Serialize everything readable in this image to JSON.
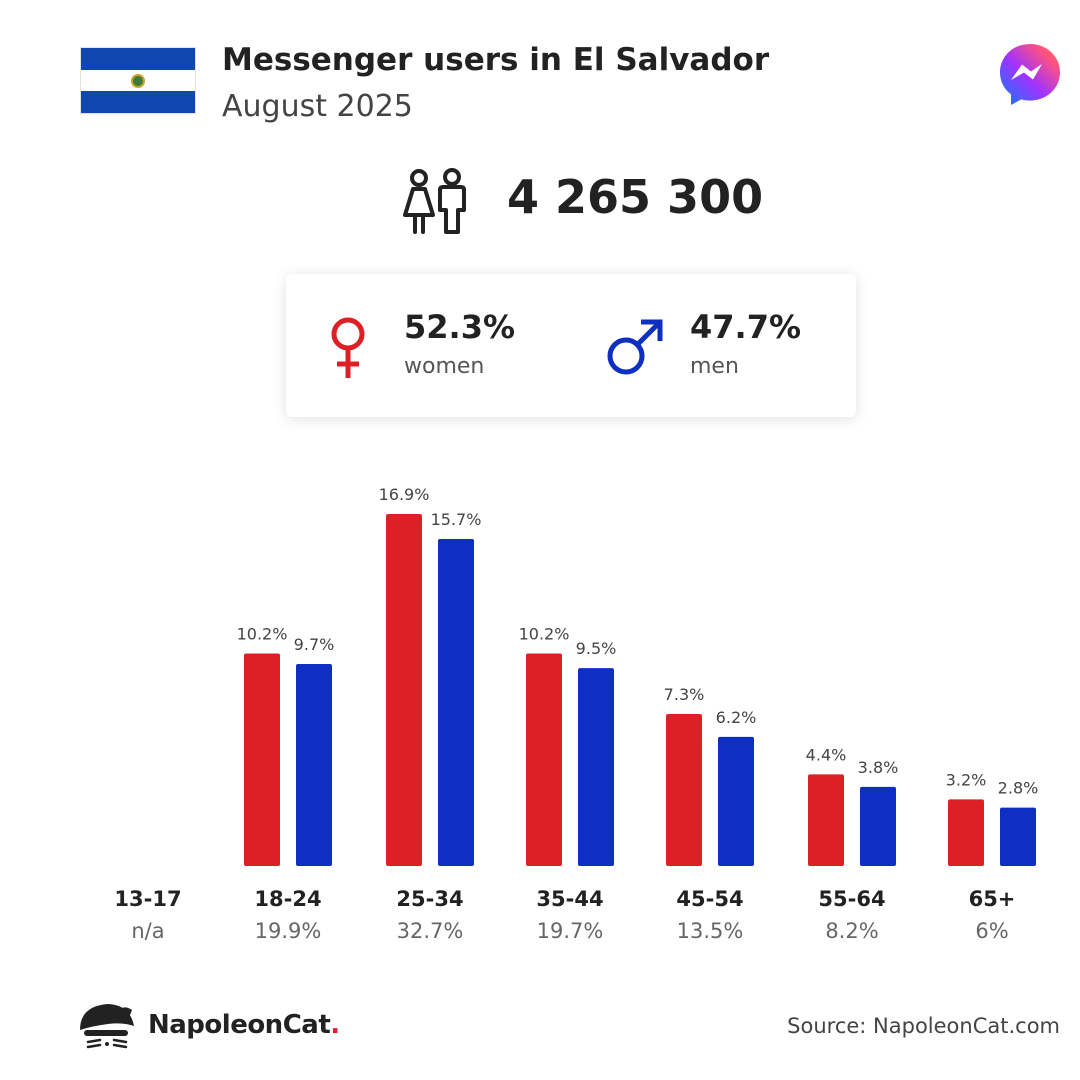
{
  "header": {
    "title": "Messenger users in El Salvador",
    "subtitle": "August 2025",
    "flag_colors": [
      "#0f47af",
      "#ffffff",
      "#0f47af"
    ],
    "flag_icon": "el-salvador-flag-icon",
    "app_icon": "messenger-logo-icon"
  },
  "total": {
    "value": "4 265 300",
    "icon": "people-icon"
  },
  "gender": {
    "women": {
      "percent": "52.3%",
      "label": "women",
      "icon": "female-symbol-icon",
      "color": "#dd1f26"
    },
    "men": {
      "percent": "47.7%",
      "label": "men",
      "icon": "male-symbol-icon",
      "color": "#0f2ec2"
    }
  },
  "chart_data": {
    "type": "bar",
    "categories": [
      "13-17",
      "18-24",
      "25-34",
      "35-44",
      "45-54",
      "55-64",
      "65+"
    ],
    "category_totals": [
      "n/a",
      "19.9%",
      "32.7%",
      "19.7%",
      "13.5%",
      "8.2%",
      "6%"
    ],
    "series": [
      {
        "name": "women",
        "color": "#dd1f26",
        "values": [
          null,
          10.2,
          16.9,
          10.2,
          7.3,
          4.4,
          3.2
        ],
        "labels": [
          "",
          "10.2%",
          "16.9%",
          "10.2%",
          "7.3%",
          "4.4%",
          "3.2%"
        ]
      },
      {
        "name": "men",
        "color": "#0f2ec2",
        "values": [
          null,
          9.7,
          15.7,
          9.5,
          6.2,
          3.8,
          2.8
        ],
        "labels": [
          "",
          "9.7%",
          "15.7%",
          "9.5%",
          "6.2%",
          "3.8%",
          "2.8%"
        ]
      }
    ],
    "ylim": [
      0,
      16.9
    ],
    "grid": false,
    "legend": "none"
  },
  "footer": {
    "brand_name": "NapoleonCat",
    "brand_dot": ".",
    "brand_icon": "napoleoncat-logo-icon",
    "source": "Source: NapoleonCat.com"
  }
}
